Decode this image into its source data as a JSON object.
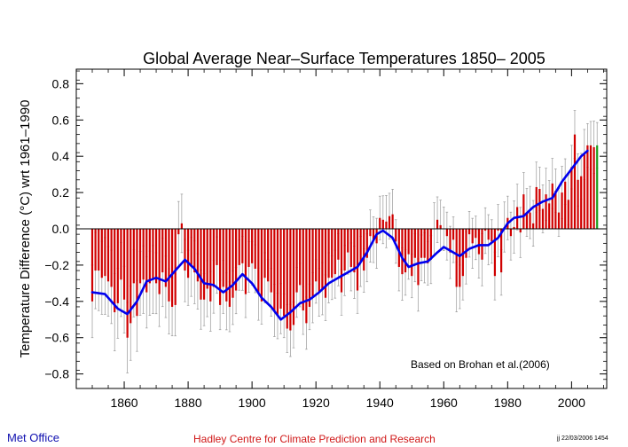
{
  "chart_data": {
    "type": "bar",
    "title": "Global Average Near–Surface Temperatures 1850– 2005",
    "ylabel": "Temperature Difference (°C) wrt 1961–1990",
    "xlabel": "",
    "annotation": "Based on Brohan et al.(2006)",
    "xlim": [
      1845,
      2011
    ],
    "ylim": [
      -0.88,
      0.88
    ],
    "x_ticks": [
      1860,
      1880,
      1900,
      1920,
      1940,
      1960,
      1980,
      2000
    ],
    "y_ticks": [
      -0.8,
      -0.6,
      -0.4,
      -0.2,
      0.0,
      0.2,
      0.4,
      0.6,
      0.8
    ],
    "y_tick_labels": [
      "−0.8",
      "−0.6",
      "−0.4",
      "−0.2",
      "0.0",
      "0.2",
      "0.4",
      "0.6",
      "0.8"
    ],
    "x_tick_labels": [
      "1860",
      "1880",
      "1900",
      "1920",
      "1940",
      "1960",
      "1980",
      "2000"
    ],
    "grid": false,
    "colors": {
      "bars": "#d00000",
      "highlight_bar": "#20a020",
      "smooth": "#0000ee",
      "error": "#999999"
    },
    "years_start": 1850,
    "values": [
      -0.4,
      -0.23,
      -0.23,
      -0.27,
      -0.26,
      -0.29,
      -0.32,
      -0.46,
      -0.41,
      -0.28,
      -0.39,
      -0.6,
      -0.52,
      -0.3,
      -0.48,
      -0.3,
      -0.28,
      -0.35,
      -0.3,
      -0.28,
      -0.3,
      -0.36,
      -0.24,
      -0.32,
      -0.4,
      -0.43,
      -0.42,
      -0.03,
      0.03,
      -0.23,
      -0.27,
      -0.21,
      -0.24,
      -0.29,
      -0.39,
      -0.39,
      -0.33,
      -0.4,
      -0.32,
      -0.2,
      -0.42,
      -0.32,
      -0.4,
      -0.43,
      -0.38,
      -0.34,
      -0.2,
      -0.19,
      -0.36,
      -0.21,
      -0.19,
      -0.22,
      -0.36,
      -0.4,
      -0.27,
      -0.29,
      -0.35,
      -0.45,
      -0.48,
      -0.44,
      -0.48,
      -0.55,
      -0.56,
      -0.53,
      -0.35,
      -0.31,
      -0.45,
      -0.52,
      -0.43,
      -0.38,
      -0.29,
      -0.35,
      -0.33,
      -0.38,
      -0.27,
      -0.27,
      -0.25,
      -0.17,
      -0.35,
      -0.23,
      -0.13,
      -0.21,
      -0.24,
      -0.34,
      -0.18,
      -0.23,
      -0.16,
      -0.04,
      -0.06,
      -0.08,
      0.06,
      0.05,
      0.04,
      0.07,
      0.08,
      -0.07,
      -0.21,
      -0.25,
      -0.24,
      -0.14,
      -0.26,
      -0.16,
      -0.31,
      -0.16,
      -0.16,
      -0.19,
      -0.17,
      0.0,
      0.05,
      0.02,
      0.0,
      -0.04,
      -0.13,
      -0.06,
      -0.32,
      -0.32,
      -0.26,
      -0.16,
      -0.03,
      -0.08,
      -0.05,
      -0.14,
      -0.17,
      -0.01,
      -0.06,
      -0.07,
      -0.26,
      -0.01,
      -0.24,
      0.01,
      0.06,
      -0.04,
      0.01,
      0.12,
      -0.02,
      0.19,
      0.09,
      0.09,
      0.03,
      0.23,
      0.22,
      0.11,
      0.19,
      0.14,
      0.25,
      0.21,
      0.09,
      0.2,
      0.26,
      0.16,
      0.34,
      0.52,
      0.27,
      0.29,
      0.41,
      0.46,
      0.46,
      0.45,
      0.46
    ],
    "smooth_points": [
      [
        1850,
        -0.35
      ],
      [
        1854,
        -0.36
      ],
      [
        1858,
        -0.44
      ],
      [
        1861,
        -0.47
      ],
      [
        1864,
        -0.4
      ],
      [
        1867,
        -0.29
      ],
      [
        1870,
        -0.27
      ],
      [
        1873,
        -0.29
      ],
      [
        1876,
        -0.23
      ],
      [
        1879,
        -0.17
      ],
      [
        1882,
        -0.22
      ],
      [
        1885,
        -0.3
      ],
      [
        1888,
        -0.31
      ],
      [
        1891,
        -0.35
      ],
      [
        1894,
        -0.31
      ],
      [
        1897,
        -0.25
      ],
      [
        1900,
        -0.3
      ],
      [
        1903,
        -0.38
      ],
      [
        1906,
        -0.43
      ],
      [
        1909,
        -0.5
      ],
      [
        1912,
        -0.46
      ],
      [
        1915,
        -0.41
      ],
      [
        1918,
        -0.39
      ],
      [
        1921,
        -0.35
      ],
      [
        1924,
        -0.3
      ],
      [
        1927,
        -0.27
      ],
      [
        1930,
        -0.24
      ],
      [
        1933,
        -0.21
      ],
      [
        1936,
        -0.13
      ],
      [
        1939,
        -0.03
      ],
      [
        1941,
        -0.01
      ],
      [
        1944,
        -0.05
      ],
      [
        1947,
        -0.16
      ],
      [
        1949,
        -0.21
      ],
      [
        1952,
        -0.19
      ],
      [
        1955,
        -0.18
      ],
      [
        1958,
        -0.13
      ],
      [
        1960,
        -0.1
      ],
      [
        1963,
        -0.13
      ],
      [
        1965,
        -0.15
      ],
      [
        1968,
        -0.11
      ],
      [
        1971,
        -0.09
      ],
      [
        1974,
        -0.09
      ],
      [
        1977,
        -0.05
      ],
      [
        1980,
        0.03
      ],
      [
        1982,
        0.06
      ],
      [
        1985,
        0.07
      ],
      [
        1988,
        0.12
      ],
      [
        1991,
        0.15
      ],
      [
        1994,
        0.17
      ],
      [
        1997,
        0.26
      ],
      [
        2000,
        0.33
      ],
      [
        2003,
        0.4
      ],
      [
        2005,
        0.43
      ]
    ]
  },
  "footer": {
    "org": "Met Office",
    "centre": "Hadley Centre for Climate Prediction and Research",
    "stamp": "jj  22/03/2006 1454"
  }
}
